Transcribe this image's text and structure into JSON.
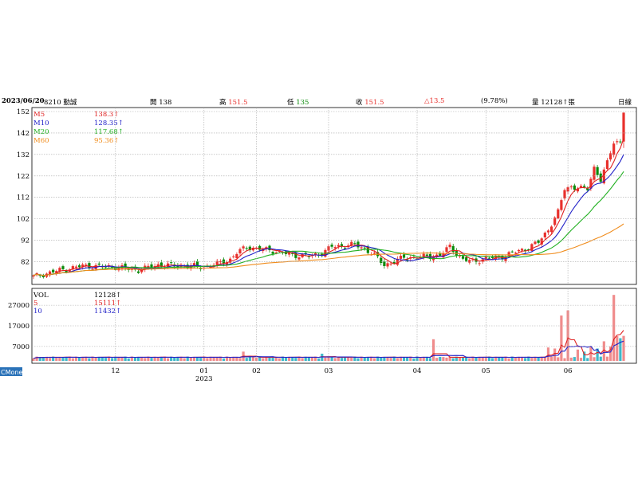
{
  "header": {
    "date": "2023/06/20",
    "stock": "8210 勤誠",
    "open_label": "開",
    "open": "138",
    "high_label": "高",
    "high": "151.5",
    "low_label": "低",
    "low": "135",
    "close_label": "收",
    "close": "151.5",
    "change": "△13.5",
    "change_pct": "(9.78%)",
    "volume_label": "量",
    "volume": "12128↑張",
    "period": "日線"
  },
  "watermark": "CMoney",
  "colors": {
    "up": "#e8302c",
    "down": "#0a8a0a",
    "ma5": "#e02020",
    "ma10": "#2020c8",
    "ma20": "#20b020",
    "ma60": "#f08c1c",
    "vol_up": "#f08c8c",
    "vol_down": "#40b8c8"
  },
  "chart_data": [
    {
      "type": "candlestick",
      "y_ticks": [
        "152",
        "142",
        "132",
        "122",
        "112",
        "102",
        "92",
        "82"
      ],
      "y_tick_values": [
        152,
        142,
        132,
        122,
        112,
        102,
        92,
        82
      ],
      "ylim": [
        74,
        152
      ],
      "x_labels": [
        {
          "text": "12",
          "idx": 25
        },
        {
          "text": "01",
          "idx": 52
        },
        {
          "text": "02",
          "idx": 68
        },
        {
          "text": "03",
          "idx": 90
        },
        {
          "text": "04",
          "idx": 117
        },
        {
          "text": "05",
          "idx": 138
        },
        {
          "text": "06",
          "idx": 163
        }
      ],
      "year_label": {
        "text": "2023",
        "idx": 52
      },
      "legend": [
        {
          "name": "M5",
          "value": "138.3↑",
          "color": "#e02020"
        },
        {
          "name": "M10",
          "value": "128.35↑",
          "color": "#2020c8"
        },
        {
          "name": "M20",
          "value": "117.68↑",
          "color": "#20b020"
        },
        {
          "name": "M60",
          "value": "95.36↑",
          "color": "#f08c1c"
        }
      ],
      "key_points": [
        {
          "idx": 0,
          "close": 75
        },
        {
          "idx": 8,
          "close": 78
        },
        {
          "idx": 15,
          "close": 80
        },
        {
          "idx": 25,
          "close": 79.5
        },
        {
          "idx": 32,
          "close": 78
        },
        {
          "idx": 38,
          "close": 80.5
        },
        {
          "idx": 44,
          "close": 80
        },
        {
          "idx": 48,
          "close": 80
        },
        {
          "idx": 52,
          "close": 79.5
        },
        {
          "idx": 56,
          "close": 81
        },
        {
          "idx": 60,
          "close": 83
        },
        {
          "idx": 62,
          "close": 86
        },
        {
          "idx": 65,
          "close": 89
        },
        {
          "idx": 68,
          "close": 88
        },
        {
          "idx": 72,
          "close": 87.5
        },
        {
          "idx": 76,
          "close": 86
        },
        {
          "idx": 80,
          "close": 85
        },
        {
          "idx": 84,
          "close": 84.5
        },
        {
          "idx": 88,
          "close": 86
        },
        {
          "idx": 91,
          "close": 89
        },
        {
          "idx": 95,
          "close": 89.5
        },
        {
          "idx": 98,
          "close": 90
        },
        {
          "idx": 101,
          "close": 88
        },
        {
          "idx": 104,
          "close": 85
        },
        {
          "idx": 107,
          "close": 80.5
        },
        {
          "idx": 110,
          "close": 82
        },
        {
          "idx": 113,
          "close": 84
        },
        {
          "idx": 117,
          "close": 84
        },
        {
          "idx": 121,
          "close": 84.5
        },
        {
          "idx": 124,
          "close": 85
        },
        {
          "idx": 127,
          "close": 89
        },
        {
          "idx": 129,
          "close": 86
        },
        {
          "idx": 131,
          "close": 83
        },
        {
          "idx": 134,
          "close": 82
        },
        {
          "idx": 138,
          "close": 83.5
        },
        {
          "idx": 142,
          "close": 84
        },
        {
          "idx": 146,
          "close": 86
        },
        {
          "idx": 150,
          "close": 88
        },
        {
          "idx": 154,
          "close": 91
        },
        {
          "idx": 157,
          "close": 97
        },
        {
          "idx": 160,
          "close": 105
        },
        {
          "idx": 162,
          "close": 116
        },
        {
          "idx": 164,
          "close": 117
        },
        {
          "idx": 167,
          "close": 116
        },
        {
          "idx": 169,
          "close": 116
        },
        {
          "idx": 171,
          "close": 126
        },
        {
          "idx": 173,
          "close": 120
        },
        {
          "idx": 175,
          "close": 128
        },
        {
          "idx": 177,
          "close": 138
        },
        {
          "idx": 179,
          "close": 138
        },
        {
          "idx": 180,
          "close": 151.5
        }
      ],
      "last_candle": {
        "open": 138,
        "high": 151.5,
        "low": 135,
        "close": 151.5
      }
    },
    {
      "type": "bar",
      "y_ticks": [
        "27000",
        "17000",
        "7000"
      ],
      "y_tick_values": [
        27000,
        17000,
        7000
      ],
      "ylim": [
        0,
        34000
      ],
      "legend": [
        {
          "name": "VOL",
          "value": "12128↑",
          "color": "#000000"
        },
        {
          "name": "5",
          "value": "15111↑",
          "color": "#e02020"
        },
        {
          "name": "10",
          "value": "11432↑",
          "color": "#2020c8"
        }
      ],
      "spikes": [
        {
          "idx": 64,
          "vol": 4500
        },
        {
          "idx": 88,
          "vol": 3500
        },
        {
          "idx": 122,
          "vol": 10500
        },
        {
          "idx": 157,
          "vol": 6500
        },
        {
          "idx": 159,
          "vol": 6000
        },
        {
          "idx": 161,
          "vol": 22000
        },
        {
          "idx": 163,
          "vol": 24500
        },
        {
          "idx": 166,
          "vol": 5500
        },
        {
          "idx": 168,
          "vol": 4500
        },
        {
          "idx": 170,
          "vol": 7000
        },
        {
          "idx": 172,
          "vol": 6000
        },
        {
          "idx": 174,
          "vol": 9500
        },
        {
          "idx": 176,
          "vol": 7000
        },
        {
          "idx": 177,
          "vol": 32000
        },
        {
          "idx": 178,
          "vol": 12000
        },
        {
          "idx": 179,
          "vol": 11000
        },
        {
          "idx": 180,
          "vol": 12128
        }
      ],
      "base_volume": 1200
    }
  ]
}
